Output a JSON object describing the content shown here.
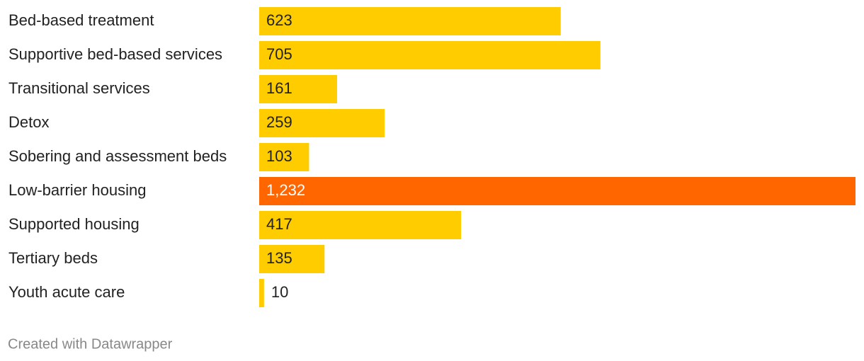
{
  "chart_data": {
    "type": "bar",
    "orientation": "horizontal",
    "categories": [
      "Bed-based treatment",
      "Supportive bed-based services",
      "Transitional services",
      "Detox",
      "Sobering and assessment beds",
      "Low-barrier housing",
      "Supported housing",
      "Tertiary beds",
      "Youth acute care"
    ],
    "values": [
      623,
      705,
      161,
      259,
      103,
      1232,
      417,
      135,
      10
    ],
    "value_labels": [
      "623",
      "705",
      "161",
      "259",
      "103",
      "1,232",
      "417",
      "135",
      "10"
    ],
    "colors": [
      "#ffcc00",
      "#ffcc00",
      "#ffcc00",
      "#ffcc00",
      "#ffcc00",
      "#ff6600",
      "#ffcc00",
      "#ffcc00",
      "#ffcc00"
    ],
    "credit": "Created with Datawrapper"
  }
}
